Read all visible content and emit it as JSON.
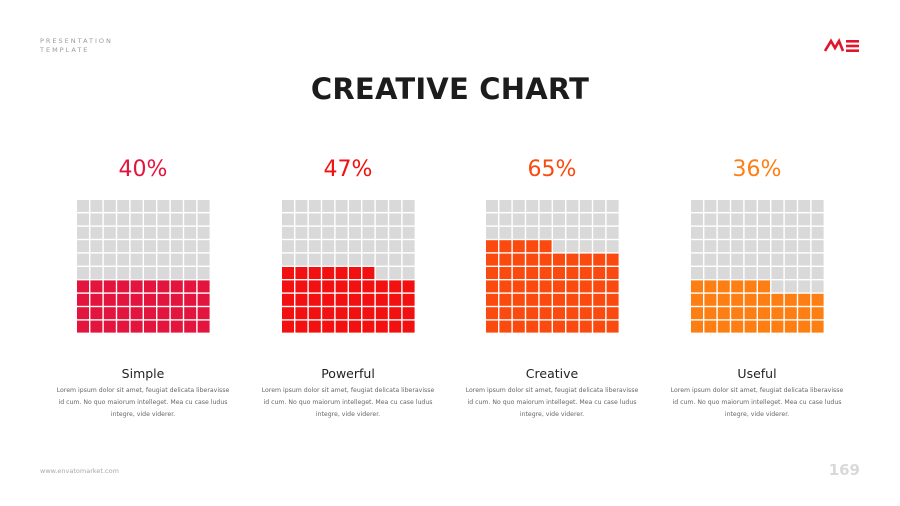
{
  "header": {
    "tag_line1": "PRESENTATION",
    "tag_line2": "TEMPLATE",
    "logo_color": "#e3152b"
  },
  "title": "CREATIVE CHART",
  "chart_data": {
    "type": "waffle",
    "grid_rows": 10,
    "grid_cols": 10,
    "empty_color": "#d9d9d9",
    "panels": [
      {
        "value_label": "40%",
        "value": 40,
        "color": "#e3143d",
        "name": "Simple",
        "desc": [
          "Lorem ipsum dolor sit amet, feugiat delicata liberavisse",
          "id cum. No quo maiorum intelleget. Mea cu case ludus",
          "integre, vide viderer."
        ]
      },
      {
        "value_label": "47%",
        "value": 47,
        "color": "#f21010",
        "name": "Powerful",
        "desc": [
          "Lorem ipsum dolor sit amet, feugiat delicata liberavisse",
          "id cum. No quo maiorum intelleget. Mea cu case ludus",
          "integre, vide viderer."
        ]
      },
      {
        "value_label": "65%",
        "value": 65,
        "color": "#fa4a0f",
        "name": "Creative",
        "desc": [
          "Lorem ipsum dolor sit amet, feugiat delicata liberavisse",
          "id cum. No quo maiorum intelleget. Mea cu case ludus",
          "integre, vide viderer."
        ]
      },
      {
        "value_label": "36%",
        "value": 36,
        "color": "#fd7e12",
        "name": "Useful",
        "desc": [
          "Lorem ipsum dolor sit amet, feugiat delicata liberavisse",
          "id cum. No quo maiorum intelleget. Mea cu case ludus",
          "integre, vide viderer."
        ]
      }
    ]
  },
  "footer": {
    "url": "www.envatomarket.com",
    "page_number": "169"
  }
}
